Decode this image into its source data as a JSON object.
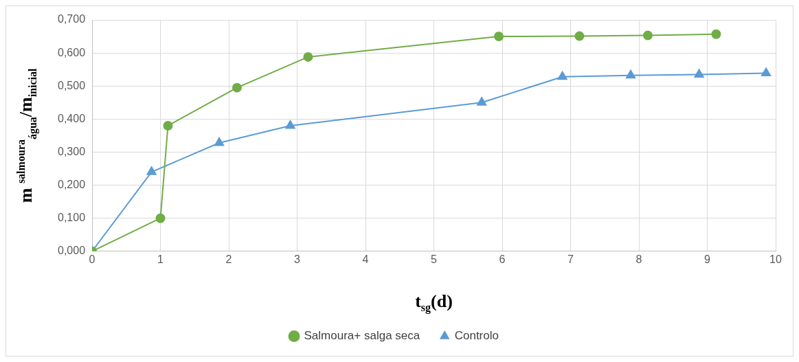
{
  "chart_data": {
    "type": "line",
    "xlabel": "t$_{sg}$(d)",
    "ylabel": "m $^{salmoura}$$_{água}$/m$_{inicial}$",
    "xlim": [
      0,
      10
    ],
    "xticks": [
      0,
      1,
      2,
      3,
      4,
      5,
      6,
      7,
      8,
      9,
      10
    ],
    "ylim": [
      0,
      0.7
    ],
    "yticks": [
      {
        "value": 0,
        "label": "0,000"
      },
      {
        "value": 0.1,
        "label": "0,100"
      },
      {
        "value": 0.2,
        "label": "0,200"
      },
      {
        "value": 0.3,
        "label": "0,300"
      },
      {
        "value": 0.4,
        "label": "0,400"
      },
      {
        "value": 0.5,
        "label": "0,500"
      },
      {
        "value": 0.6,
        "label": "0,600"
      },
      {
        "value": 0.7,
        "label": "0,700"
      }
    ],
    "grid": true,
    "legend": "bottom",
    "line_style": "solid",
    "series": [
      {
        "name": "Salmoura+ salga seca",
        "color": "#70ad47",
        "marker": "circle",
        "x": [
          0,
          1.0,
          1.11,
          2.12,
          3.16,
          5.95,
          7.13,
          8.13,
          9.13
        ],
        "values": [
          0,
          0.1,
          0.38,
          0.495,
          0.588,
          0.65,
          0.651,
          0.653,
          0.657
        ]
      },
      {
        "name": "Controlo",
        "color": "#5b9bd5",
        "marker": "triangle",
        "x": [
          0,
          0.87,
          1.86,
          2.9,
          5.7,
          6.88,
          7.88,
          8.88,
          9.86
        ],
        "values": [
          0,
          0.24,
          0.328,
          0.38,
          0.45,
          0.528,
          0.532,
          0.535,
          0.539
        ]
      }
    ]
  }
}
